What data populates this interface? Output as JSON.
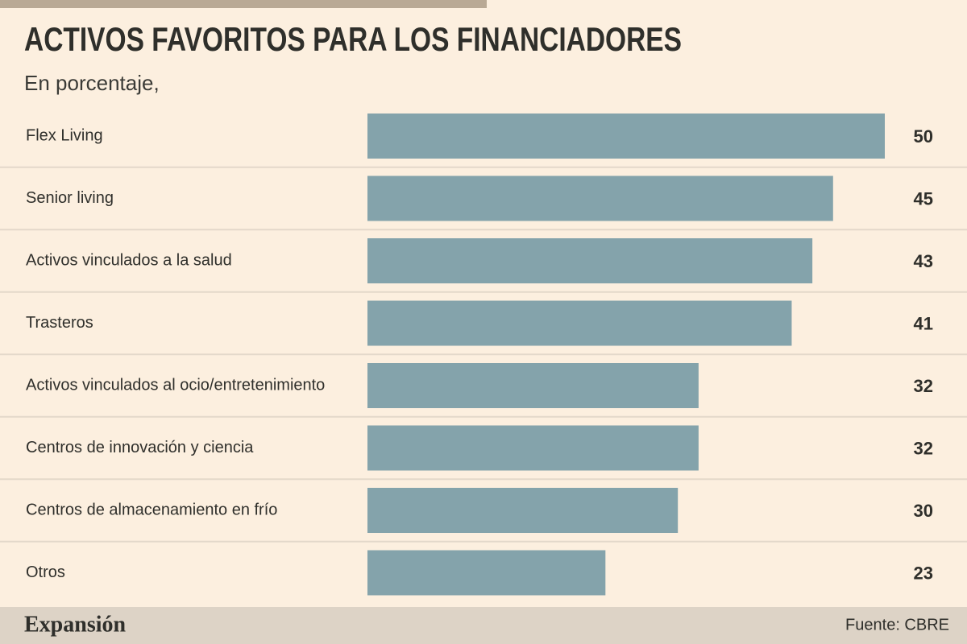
{
  "chart_data": {
    "type": "bar",
    "orientation": "horizontal",
    "title": "ACTIVOS FAVORITOS PARA LOS FINANCIADORES",
    "subtitle": "En porcentaje,",
    "categories": [
      "Flex Living",
      "Senior living",
      "Activos vinculados a la salud",
      "Trasteros",
      "Activos vinculados al ocio/entretenimiento",
      "Centros de innovación y ciencia",
      "Centros de almacenamiento en frío",
      "Otros"
    ],
    "values": [
      50,
      45,
      43,
      41,
      32,
      32,
      30,
      23
    ],
    "color": "#84a3ab",
    "brand": "Expansión",
    "source": "Fuente: CBRE"
  }
}
